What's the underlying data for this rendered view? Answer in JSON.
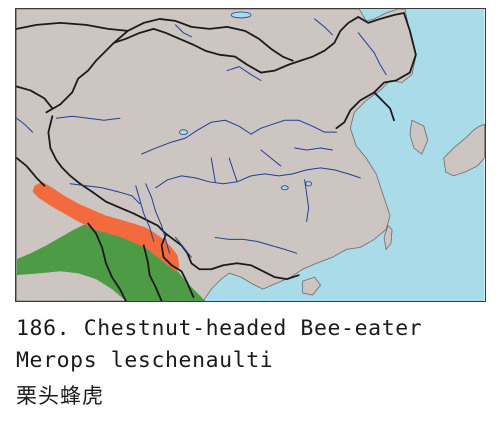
{
  "map": {
    "colors": {
      "sea": "#a9dbe9",
      "land": "#cdc5c1",
      "border": "#1a1a1a",
      "river": "#1f3f95",
      "resident_range": "#4d9c45",
      "breeding_range": "#f26a3d"
    }
  },
  "species": {
    "number_and_name": "186. Chestnut-headed Bee-eater",
    "scientific_name": "Merops leschenaulti",
    "chinese_name": "栗头蜂虎"
  }
}
